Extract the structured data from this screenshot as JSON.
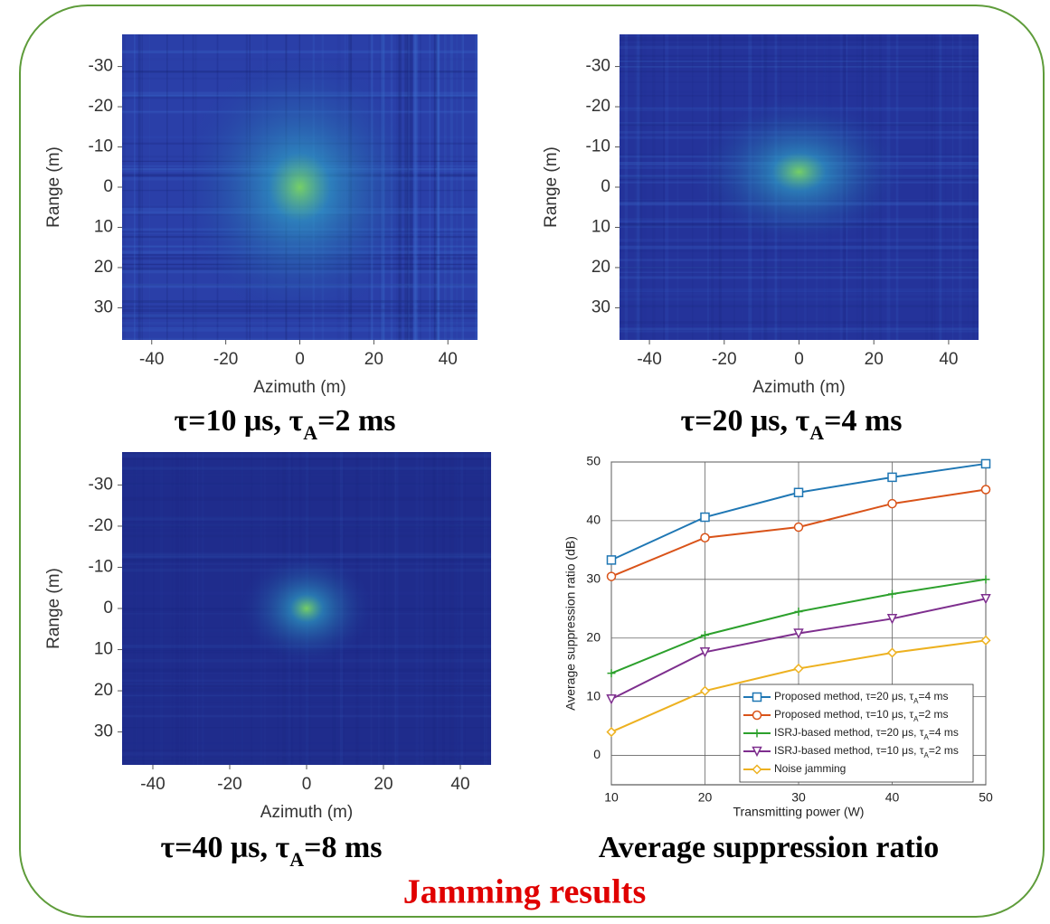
{
  "chart_data": [
    {
      "type": "heatmap",
      "xlabel": "Azimuth (m)",
      "ylabel": "Range (m)",
      "xlim": [
        -48,
        48
      ],
      "xticks": [
        -40,
        -20,
        0,
        20,
        40
      ],
      "ylim": [
        -38,
        38
      ],
      "yticks": [
        -30,
        -20,
        -10,
        0,
        10,
        20,
        30
      ],
      "y_reversed": true,
      "caption": [
        "τ=10 μs, τ",
        "A",
        "=2 ms"
      ]
    },
    {
      "type": "heatmap",
      "xlabel": "Azimuth (m)",
      "ylabel": "Range (m)",
      "xlim": [
        -48,
        48
      ],
      "xticks": [
        -40,
        -20,
        0,
        20,
        40
      ],
      "ylim": [
        -38,
        38
      ],
      "yticks": [
        -30,
        -20,
        -10,
        0,
        10,
        20,
        30
      ],
      "y_reversed": true,
      "caption": [
        "τ=20 μs, τ",
        "A",
        "=4 ms"
      ]
    },
    {
      "type": "heatmap",
      "xlabel": "Azimuth (m)",
      "ylabel": "Range (m)",
      "xlim": [
        -48,
        48
      ],
      "xticks": [
        -40,
        -20,
        0,
        20,
        40
      ],
      "ylim": [
        -38,
        38
      ],
      "yticks": [
        -30,
        -20,
        -10,
        0,
        10,
        20,
        30
      ],
      "y_reversed": true,
      "caption": [
        "τ=40 μs, τ",
        "A",
        "=8 ms"
      ]
    },
    {
      "type": "line",
      "xlabel": "Transmitting power (W)",
      "ylabel": "Average suppression ratio (dB)",
      "x": [
        10,
        20,
        30,
        40,
        50
      ],
      "xlim": [
        10,
        50
      ],
      "xticks": [
        10,
        20,
        30,
        40,
        50
      ],
      "ylim": [
        -5,
        50
      ],
      "yticks": [
        0,
        10,
        20,
        30,
        40,
        50
      ],
      "grid": true,
      "legend": "lower right",
      "caption": [
        "Average suppression ratio"
      ],
      "series": [
        {
          "name": [
            "Proposed method, τ=20 μs, τ",
            "A",
            "=4 ms"
          ],
          "color": "#1f77b4",
          "marker": "square",
          "values": [
            33.3,
            40.6,
            44.8,
            47.4,
            49.7
          ]
        },
        {
          "name": [
            "Proposed method, τ=10 μs, τ",
            "A",
            "=2 ms"
          ],
          "color": "#d95319",
          "marker": "circle",
          "values": [
            30.5,
            37.1,
            38.9,
            42.9,
            45.3
          ]
        },
        {
          "name": [
            "ISRJ-based method, τ=20 μs, τ",
            "A",
            "=4 ms"
          ],
          "color": "#2ca02c",
          "marker": "plus",
          "values": [
            14,
            20.5,
            24.5,
            27.5,
            30
          ]
        },
        {
          "name": [
            "ISRJ-based method, τ=10 μs, τ",
            "A",
            "=2 ms"
          ],
          "color": "#7e2f8e",
          "marker": "triangle-down",
          "values": [
            9.6,
            17.6,
            20.8,
            23.3,
            26.7
          ]
        },
        {
          "name": [
            "Noise jamming"
          ],
          "color": "#edb120",
          "marker": "diamond",
          "values": [
            4,
            11,
            14.8,
            17.5,
            19.6
          ]
        }
      ]
    }
  ],
  "footer": "Jamming results"
}
